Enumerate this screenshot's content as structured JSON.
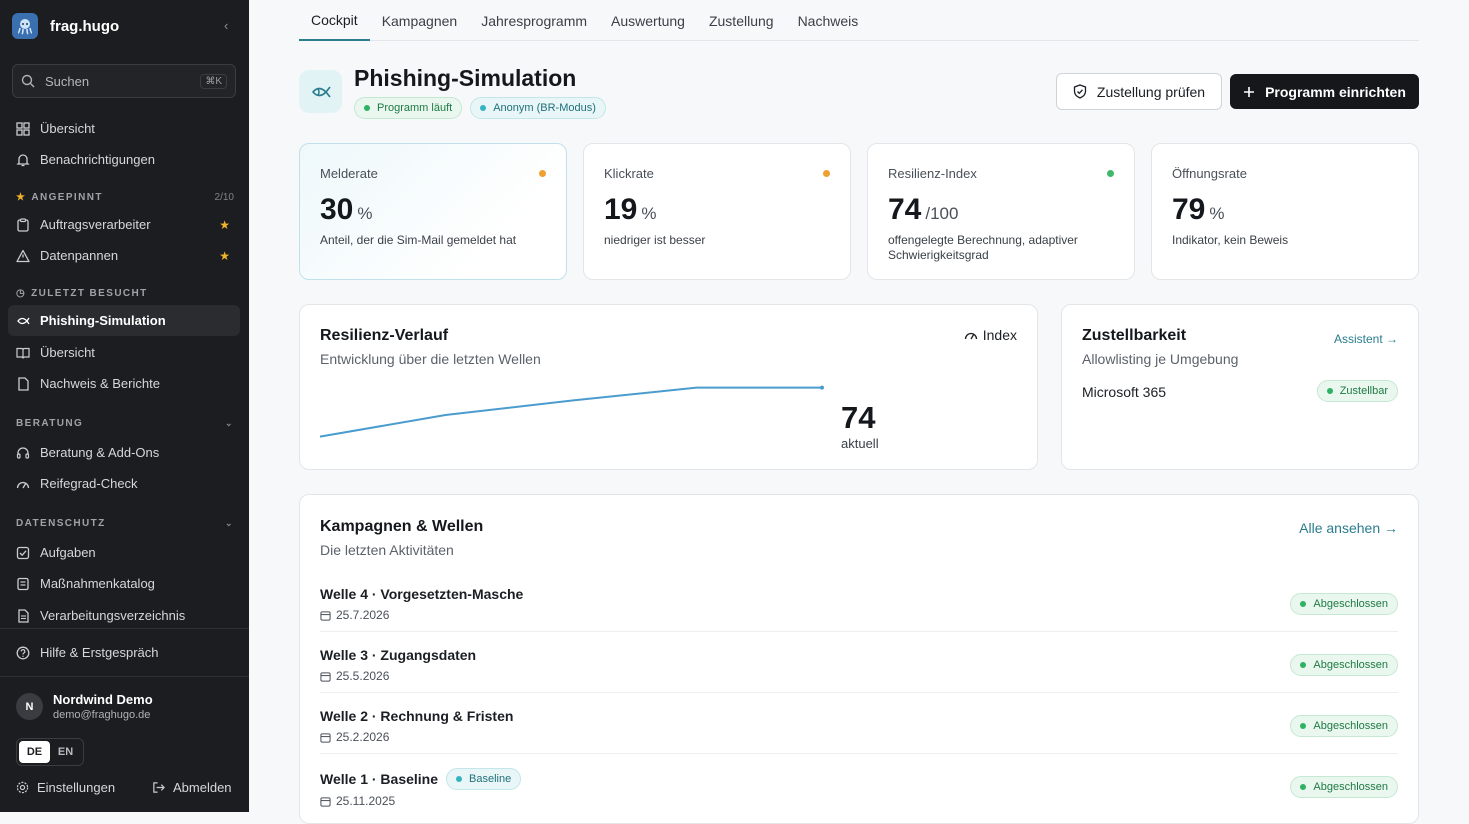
{
  "app": {
    "name": "frag.hugo"
  },
  "search": {
    "label": "Suchen",
    "shortcut": "⌘K"
  },
  "nav": {
    "overview": "Übersicht",
    "notifications": "Benachrichtigungen",
    "pinned_title": "ANGEPINNT",
    "pinned_count": "2/10",
    "pinned": [
      "Auftragsverarbeiter",
      "Datenpannen"
    ],
    "recent_title": "ZULETZT BESUCHT",
    "recent": [
      "Phishing-Simulation",
      "Übersicht",
      "Nachweis & Berichte"
    ],
    "beratung_title": "BERATUNG",
    "beratung": [
      "Beratung & Add-Ons",
      "Reifegrad-Check"
    ],
    "datenschutz_title": "DATENSCHUTZ",
    "datenschutz": [
      "Aufgaben",
      "Maßnahmenkatalog",
      "Verarbeitungsverzeichnis"
    ],
    "help": "Hilfe & Erstgespräch"
  },
  "user": {
    "initial": "N",
    "name": "Nordwind Demo",
    "email": "demo@fraghugo.de"
  },
  "lang": {
    "de": "DE",
    "en": "EN"
  },
  "footer": {
    "settings": "Einstellungen",
    "logout": "Abmelden"
  },
  "tabs": [
    "Cockpit",
    "Kampagnen",
    "Jahresprogramm",
    "Auswertung",
    "Zustellung",
    "Nachweis"
  ],
  "page": {
    "title": "Phishing-Simulation",
    "badge_running": "Programm läuft",
    "badge_anon": "Anonym (BR-Modus)",
    "btn_check": "Zustellung prüfen",
    "btn_setup": "Programm einrichten"
  },
  "kpis": [
    {
      "label": "Melderate",
      "value": "30",
      "unit": "%",
      "sub": "Anteil, der die Sim-Mail gemeldet hat",
      "status_color": "#f0a030"
    },
    {
      "label": "Klickrate",
      "value": "19",
      "unit": "%",
      "sub": "niedriger ist besser",
      "status_color": "#f0a030"
    },
    {
      "label": "Resilienz-Index",
      "value": "74",
      "unit": "/100",
      "sub": "offengelegte Berechnung, adaptiver Schwierigkeitsgrad",
      "status_color": "#3fb86a"
    },
    {
      "label": "Öffnungsrate",
      "value": "79",
      "unit": "%",
      "sub": "Indikator, kein Beweis",
      "status_color": ""
    }
  ],
  "resilience": {
    "title": "Resilienz-Verlauf",
    "subtitle": "Entwicklung über die letzten Wellen",
    "index_label": "Index",
    "current_value": "74",
    "current_label": "aktuell"
  },
  "chart_data": {
    "type": "line",
    "x": [
      1,
      2,
      3,
      4,
      5
    ],
    "values": [
      40,
      55,
      65,
      74,
      74
    ],
    "ylim": [
      30,
      80
    ],
    "color": "#4a9ccf"
  },
  "delivery": {
    "title": "Zustellbarkeit",
    "subtitle": "Allowlisting je Umgebung",
    "link": "Assistent →",
    "env": "Microsoft 365",
    "env_status": "Zustellbar"
  },
  "campaigns": {
    "title": "Kampagnen & Wellen",
    "subtitle": "Die letzten Aktivitäten",
    "link": "Alle ansehen →",
    "rows": [
      {
        "title": "Welle 4 · Vorgesetzten-Masche",
        "date": "25.7.2026",
        "status": "Abgeschlossen",
        "tag": ""
      },
      {
        "title": "Welle 3 · Zugangsdaten",
        "date": "25.5.2026",
        "status": "Abgeschlossen",
        "tag": ""
      },
      {
        "title": "Welle 2 · Rechnung & Fristen",
        "date": "25.2.2026",
        "status": "Abgeschlossen",
        "tag": ""
      },
      {
        "title": "Welle 1 · Baseline",
        "date": "25.11.2025",
        "status": "Abgeschlossen",
        "tag": "Baseline"
      }
    ]
  }
}
